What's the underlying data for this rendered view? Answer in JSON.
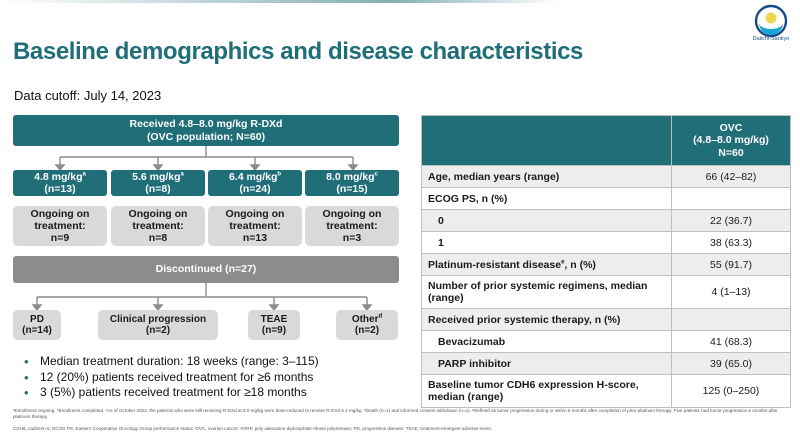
{
  "logo": {
    "text": "Daiichi-Sankyo",
    "colors": {
      "outer": "#1b4b8a",
      "ring": "#19a8d6",
      "center": "#f0d64e"
    }
  },
  "title": "Baseline demographics and disease characteristics",
  "cutoff": "Data cutoff: July 14, 2023",
  "flow": {
    "top_line1": "Received 4.8–8.0 mg/kg R-DXd",
    "top_line2": "(OVC population; N=60)",
    "doses": [
      {
        "dose": "4.8 mg/kg",
        "sup": "a",
        "n": "(n=13)",
        "ongoing_label": "Ongoing on treatment:",
        "ongoing_n": "n=9"
      },
      {
        "dose": "5.6 mg/kg",
        "sup": "a",
        "n": "(n=8)",
        "ongoing_label": "Ongoing on treatment:",
        "ongoing_n": "n=8"
      },
      {
        "dose": "6.4 mg/kg",
        "sup": "b",
        "n": "(n=24)",
        "ongoing_label": "Ongoing on treatment:",
        "ongoing_n": "n=13"
      },
      {
        "dose": "8.0 mg/kg",
        "sup": "c",
        "n": "(n=15)",
        "ongoing_label": "Ongoing on treatment:",
        "ongoing_n": "n=3"
      }
    ],
    "discontinued": "Discontinued (n=27)",
    "reasons": [
      {
        "label": "PD",
        "sup": "",
        "n": "(n=14)"
      },
      {
        "label": "Clinical progression",
        "sup": "",
        "n": "(n=2)"
      },
      {
        "label": "TEAE",
        "sup": "",
        "n": "(n=9)"
      },
      {
        "label": "Other",
        "sup": "d",
        "n": "(n=2)"
      }
    ]
  },
  "bullets": [
    "Median treatment duration: 18 weeks (range: 3–115)",
    "12 (20%) patients received treatment for ≥6 months",
    "3 (5%) patients received treatment for ≥18 months"
  ],
  "table": {
    "header_line1": "OVC",
    "header_line2": "(4.8–8.0 mg/kg)",
    "header_line3": "N=60",
    "rows": [
      {
        "label": "Age, median years (range)",
        "value": "66 (42–82)"
      },
      {
        "label": "ECOG PS, n (%)",
        "value": ""
      },
      {
        "label": "0",
        "value": "22 (36.7)"
      },
      {
        "label": "1",
        "value": "38 (63.3)"
      },
      {
        "label": "Platinum-resistant disease",
        "sup": "e",
        "label_suffix": ", n (%)",
        "value": "55 (91.7)"
      },
      {
        "label": "Number of prior systemic regimens, median (range)",
        "value": "4 (1–13)"
      },
      {
        "label": "Received prior systemic therapy, n (%)",
        "value": ""
      },
      {
        "label": "Bevacizumab",
        "value": "41 (68.3)"
      },
      {
        "label": "PARP inhibitor",
        "value": "39 (65.0)"
      },
      {
        "label": "Baseline tumor CDH6 expression H-score, median (range)",
        "value": "125 (0–250)"
      }
    ]
  },
  "footnotes": {
    "line1": "ᵃEnrollment ongoing. ᵇEnrollment completed. ᶜAs of October 2022, the patients who were still receiving R-DXd at 8.0 mg/kg were dose-reduced to receive R-DXd 6.4 mg/kg. ᵈDeath (n=1) and informed consent withdrawn (n=1). ᵉDefined as tumor progression during or within 6 months after completion of prior platinum therapy. Five patients had tumor progression 6 months after platinum therapy.",
    "line2": "CDH6, cadherin 6; ECOG PS, Eastern Cooperative Oncology Group performance status; OVC, ovarian cancer; PARP, poly adenosine diphosphate-ribose polymerase; PD, progressive disease; TEAE, treatment-emergent adverse event."
  }
}
